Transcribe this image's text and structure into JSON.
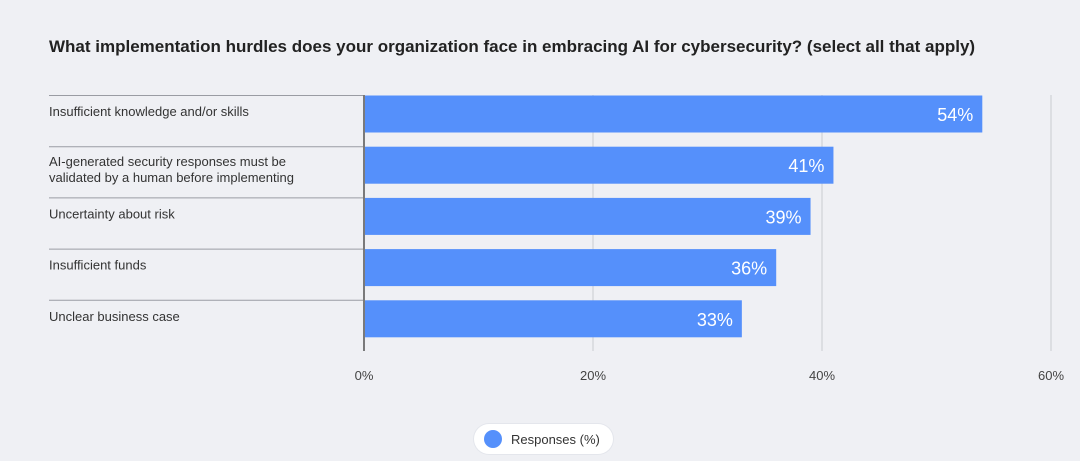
{
  "chart_data": {
    "type": "bar",
    "orientation": "horizontal",
    "title": "What implementation hurdles does your organization face in embracing AI for cybersecurity? (select all that apply)",
    "categories": [
      [
        "Insufficient knowledge and/or skills"
      ],
      [
        "AI-generated security responses must be",
        "validated by a human before implementing"
      ],
      [
        "Uncertainty about risk"
      ],
      [
        "Insufficient funds"
      ],
      [
        "Unclear business case"
      ]
    ],
    "series": [
      {
        "name": "Responses (%)",
        "values": [
          54,
          41,
          39,
          36,
          33
        ],
        "data_labels": [
          "54%",
          "41%",
          "39%",
          "36%",
          "33%"
        ]
      }
    ],
    "xlim": [
      0,
      60
    ],
    "x_ticks": [
      0,
      20,
      40,
      60
    ],
    "x_tick_labels": [
      "0%",
      "20%",
      "40%",
      "60%"
    ],
    "grid": "vertical",
    "legend": "bottom-center",
    "colors": {
      "bar": "#5590fb",
      "gridline": "#c9cbd1",
      "background": "#eff0f4"
    }
  }
}
